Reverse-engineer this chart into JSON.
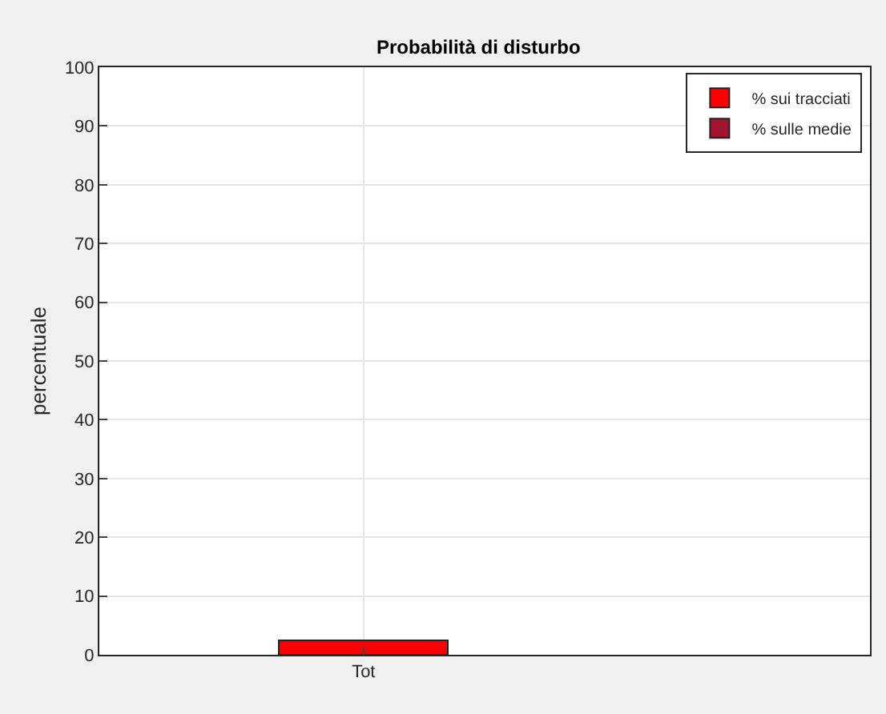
{
  "chart_data": {
    "type": "bar",
    "title": "Probabilità di disturbo",
    "ylabel": "percentuale",
    "categories": [
      "Tot"
    ],
    "series": [
      {
        "name": "% sulle medie",
        "color": "#a2142f",
        "values": [
          null
        ]
      },
      {
        "name": "% sui tracciati",
        "color": "#ff0000",
        "values": [
          2.5
        ]
      }
    ],
    "stacked": true,
    "ylim": [
      0,
      100
    ],
    "yticks": [
      0,
      10,
      20,
      30,
      40,
      50,
      60,
      70,
      80,
      90,
      100
    ],
    "grid": true,
    "legend": "top right"
  }
}
